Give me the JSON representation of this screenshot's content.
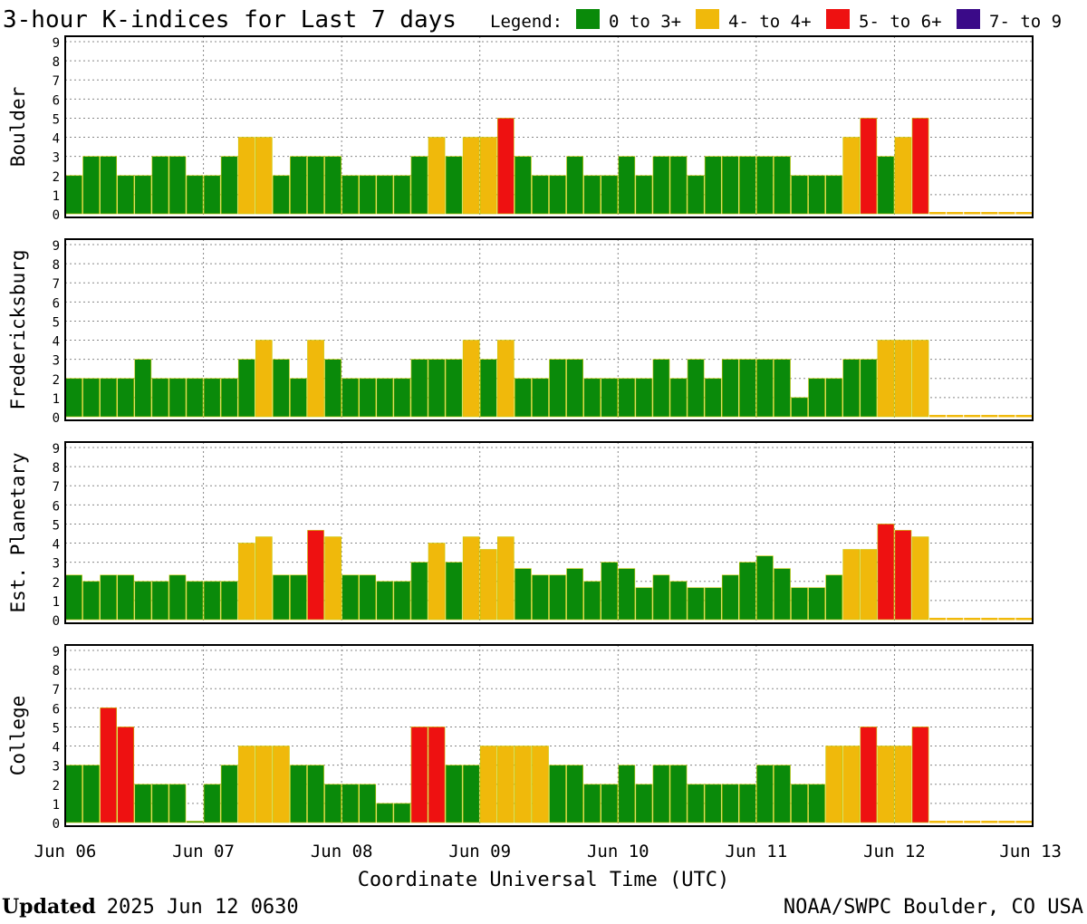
{
  "chart_data": {
    "type": "bar",
    "title": "3-hour K-indices for Last 7 days",
    "legend": {
      "label": "Legend:",
      "entries": [
        {
          "label": "0 to 3+",
          "color": "#0a8a0a"
        },
        {
          "label": "4- to 4+",
          "color": "#f0b90b"
        },
        {
          "label": "5- to 6+",
          "color": "#ee1111"
        },
        {
          "label": "7- to 9",
          "color": "#3a0a88"
        }
      ]
    },
    "x_tick_labels": [
      "Jun 06",
      "Jun 07",
      "Jun 08",
      "Jun 09",
      "Jun 10",
      "Jun 11",
      "Jun 12",
      "Jun 13"
    ],
    "xlabel": "Coordinate Universal Time (UTC)",
    "y_tick_labels": [
      "0",
      "1",
      "2",
      "3",
      "4",
      "5",
      "6",
      "7",
      "8",
      "9"
    ],
    "ylim": [
      0,
      9
    ],
    "intervals_per_day": 8,
    "days": 7,
    "panels": [
      {
        "name": "Boulder",
        "values": [
          2,
          3,
          3,
          2,
          2,
          3,
          3,
          2,
          2,
          3,
          4,
          4,
          2,
          3,
          3,
          3,
          2,
          2,
          2,
          2,
          3,
          4,
          3,
          4,
          4,
          5,
          3,
          2,
          2,
          3,
          2,
          2,
          3,
          2,
          3,
          3,
          2,
          3,
          3,
          3,
          3,
          3,
          2,
          2,
          2,
          4,
          5,
          3,
          4,
          5
        ]
      },
      {
        "name": "Fredericksburg",
        "values": [
          2,
          2,
          2,
          2,
          3,
          2,
          2,
          2,
          2,
          2,
          3,
          4,
          3,
          2,
          4,
          3,
          2,
          2,
          2,
          2,
          3,
          3,
          3,
          4,
          3,
          4,
          2,
          2,
          3,
          3,
          2,
          2,
          2,
          2,
          3,
          2,
          3,
          2,
          3,
          3,
          3,
          3,
          1,
          2,
          2,
          3,
          3,
          4,
          4,
          4
        ]
      },
      {
        "name": "Est. Planetary",
        "values": [
          2.33,
          2,
          2.33,
          2.33,
          2,
          2,
          2.33,
          2,
          2,
          2,
          4,
          4.33,
          2.33,
          2.33,
          4.67,
          4.33,
          2.33,
          2.33,
          2,
          2,
          3,
          4,
          3,
          4.33,
          3.67,
          4.33,
          2.67,
          2.33,
          2.33,
          2.67,
          2,
          3,
          2.67,
          1.67,
          2.33,
          2,
          1.67,
          1.67,
          2.33,
          3,
          3.33,
          2.67,
          1.67,
          1.67,
          2.33,
          3.67,
          3.67,
          5,
          4.67,
          4.33
        ]
      },
      {
        "name": "College",
        "values": [
          3,
          3,
          6,
          5,
          2,
          2,
          2,
          0,
          2,
          3,
          4,
          4,
          4,
          3,
          3,
          2,
          2,
          2,
          1,
          1,
          5,
          5,
          3,
          3,
          4,
          4,
          4,
          4,
          3,
          3,
          2,
          2,
          3,
          2,
          3,
          3,
          2,
          2,
          2,
          2,
          3,
          3,
          2,
          2,
          4,
          4,
          5,
          4,
          4,
          5
        ]
      }
    ]
  },
  "footer": {
    "updated_label": "Updated",
    "updated_value": "2025 Jun 12 0630",
    "source": "NOAA/SWPC Boulder, CO USA"
  }
}
